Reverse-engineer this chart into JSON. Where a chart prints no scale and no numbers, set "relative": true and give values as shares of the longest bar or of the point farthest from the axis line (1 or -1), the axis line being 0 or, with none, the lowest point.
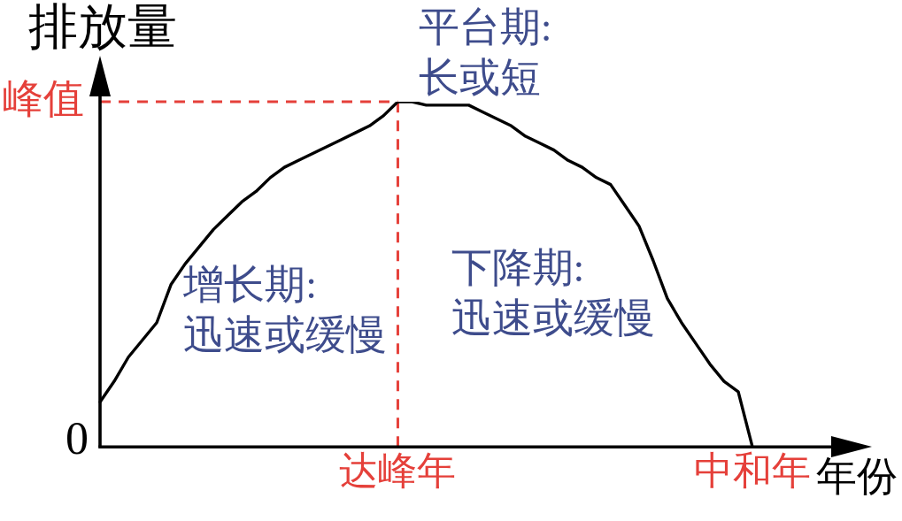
{
  "chart_data": {
    "type": "line",
    "relative": true,
    "categories": [
      null,
      null,
      null,
      null,
      null,
      null,
      null,
      null,
      null,
      null,
      null,
      null,
      null,
      null,
      null,
      null,
      null,
      null,
      null,
      null,
      null,
      "达峰年",
      null,
      null,
      null,
      null,
      null,
      null,
      null,
      null,
      null,
      null,
      null,
      null,
      null,
      null,
      null,
      null,
      null,
      null,
      null,
      null,
      null,
      null,
      null,
      null,
      "中和年"
    ],
    "series": [
      {
        "color": "#000000",
        "values": [
          0.13,
          0.19,
          0.26,
          0.31,
          0.36,
          0.47,
          0.53,
          0.58,
          0.63,
          0.67,
          0.71,
          0.74,
          0.78,
          0.81,
          0.83,
          0.85,
          0.87,
          0.89,
          0.91,
          0.93,
          0.96,
          1,
          1,
          0.99,
          0.99,
          0.99,
          0.99,
          0.97,
          0.95,
          0.93,
          0.9,
          0.88,
          0.86,
          0.83,
          0.81,
          0.78,
          0.76,
          0.7,
          0.64,
          0.54,
          0.43,
          0.36,
          0.3,
          0.24,
          0.19,
          0.16,
          0
        ]
      }
    ],
    "xlabel": "年份",
    "ylabel": "排放量",
    "ref_lines": [
      {
        "axis": "y",
        "value": 1,
        "label": "峰值",
        "color": "#e5403a",
        "line_style": "dashed"
      },
      {
        "axis": "x",
        "value": "达峰年",
        "color": "#e5403a",
        "line_style": "dashed"
      }
    ],
    "annotations": [
      "0",
      "平台期:\n长或短",
      "增长期:\n迅速或缓慢",
      "下降期:\n迅速或缓慢"
    ],
    "legend": false,
    "grid": false,
    "marker": "none"
  }
}
